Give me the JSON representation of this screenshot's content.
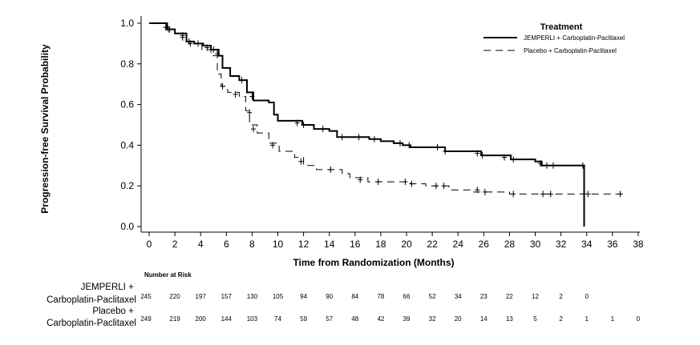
{
  "chart_data": {
    "type": "line",
    "subtype": "kaplan-meier",
    "xlabel": "Time from Randomization (Months)",
    "ylabel": "Progression-free Survival Probability",
    "xlim": [
      0,
      38
    ],
    "ylim": [
      0,
      1.0
    ],
    "x_ticks": [
      "0",
      "2",
      "4",
      "6",
      "8",
      "10",
      "12",
      "14",
      "16",
      "18",
      "20",
      "22",
      "24",
      "26",
      "28",
      "30",
      "32",
      "34",
      "36",
      "38"
    ],
    "y_ticks": [
      "0.0",
      "0.2",
      "0.4",
      "0.6",
      "0.8",
      "1.0"
    ],
    "legend_title": "Treatment",
    "legend_position": "top-right",
    "series": [
      {
        "name": "JEMPERLI + Carboplatin-Paclitaxel",
        "style": "solid",
        "steps": [
          [
            0,
            1.0
          ],
          [
            1.4,
            0.97
          ],
          [
            2.0,
            0.95
          ],
          [
            2.9,
            0.91
          ],
          [
            3.5,
            0.9
          ],
          [
            4.2,
            0.89
          ],
          [
            4.8,
            0.87
          ],
          [
            5.4,
            0.84
          ],
          [
            5.7,
            0.78
          ],
          [
            6.3,
            0.74
          ],
          [
            7.0,
            0.72
          ],
          [
            7.6,
            0.66
          ],
          [
            8.1,
            0.62
          ],
          [
            9.3,
            0.61
          ],
          [
            9.7,
            0.55
          ],
          [
            10.0,
            0.52
          ],
          [
            11.9,
            0.5
          ],
          [
            12.8,
            0.48
          ],
          [
            14.0,
            0.47
          ],
          [
            14.5,
            0.47
          ],
          [
            14.6,
            0.44
          ],
          [
            17.1,
            0.43
          ],
          [
            18.0,
            0.42
          ],
          [
            19.0,
            0.41
          ],
          [
            19.7,
            0.4
          ],
          [
            20.3,
            0.39
          ],
          [
            23.0,
            0.37
          ],
          [
            25.8,
            0.35
          ],
          [
            28.1,
            0.33
          ],
          [
            30.0,
            0.32
          ],
          [
            30.5,
            0.3
          ],
          [
            33.8,
            0.3
          ],
          [
            33.8,
            0.0
          ]
        ],
        "censors": [
          [
            1.3,
            0.98
          ],
          [
            1.5,
            0.97
          ],
          [
            2.6,
            0.94
          ],
          [
            3.1,
            0.91
          ],
          [
            3.8,
            0.9
          ],
          [
            4.5,
            0.88
          ],
          [
            5.0,
            0.87
          ],
          [
            5.3,
            0.85
          ],
          [
            7.2,
            0.72
          ],
          [
            8.0,
            0.64
          ],
          [
            11.5,
            0.51
          ],
          [
            12.0,
            0.5
          ],
          [
            13.5,
            0.48
          ],
          [
            15.0,
            0.44
          ],
          [
            16.3,
            0.44
          ],
          [
            17.5,
            0.43
          ],
          [
            19.5,
            0.41
          ],
          [
            20.2,
            0.4
          ],
          [
            22.4,
            0.39
          ],
          [
            23.0,
            0.37
          ],
          [
            25.5,
            0.36
          ],
          [
            25.9,
            0.35
          ],
          [
            27.6,
            0.34
          ],
          [
            28.3,
            0.33
          ],
          [
            30.4,
            0.31
          ],
          [
            30.9,
            0.3
          ],
          [
            31.4,
            0.3
          ],
          [
            33.7,
            0.3
          ]
        ],
        "at_risk_label": "JEMPERLI +\nCarboplatin-Paclitaxel",
        "at_risk": [
          "245",
          "220",
          "197",
          "157",
          "130",
          "105",
          "94",
          "90",
          "84",
          "78",
          "66",
          "52",
          "34",
          "23",
          "22",
          "12",
          "2",
          "0"
        ]
      },
      {
        "name": "Placebo + Carboplatin-Paclitaxel",
        "style": "dashed",
        "steps": [
          [
            0,
            1.0
          ],
          [
            1.4,
            0.97
          ],
          [
            2.0,
            0.95
          ],
          [
            2.9,
            0.91
          ],
          [
            3.5,
            0.9
          ],
          [
            4.1,
            0.87
          ],
          [
            4.8,
            0.84
          ],
          [
            5.3,
            0.75
          ],
          [
            5.6,
            0.69
          ],
          [
            6.1,
            0.66
          ],
          [
            7.0,
            0.64
          ],
          [
            7.5,
            0.57
          ],
          [
            7.8,
            0.5
          ],
          [
            8.4,
            0.46
          ],
          [
            9.3,
            0.41
          ],
          [
            10.1,
            0.37
          ],
          [
            11.3,
            0.34
          ],
          [
            12.0,
            0.3
          ],
          [
            13.0,
            0.28
          ],
          [
            15.0,
            0.26
          ],
          [
            15.6,
            0.24
          ],
          [
            17.0,
            0.22
          ],
          [
            20.3,
            0.21
          ],
          [
            21.5,
            0.2
          ],
          [
            23.3,
            0.18
          ],
          [
            25.1,
            0.17
          ],
          [
            27.0,
            0.17
          ],
          [
            28.0,
            0.16
          ],
          [
            36.8,
            0.16
          ]
        ],
        "censors": [
          [
            1.3,
            0.98
          ],
          [
            1.6,
            0.97
          ],
          [
            2.6,
            0.93
          ],
          [
            3.2,
            0.9
          ],
          [
            5.7,
            0.69
          ],
          [
            6.7,
            0.65
          ],
          [
            7.8,
            0.56
          ],
          [
            8.1,
            0.48
          ],
          [
            9.6,
            0.4
          ],
          [
            11.8,
            0.32
          ],
          [
            14.1,
            0.28
          ],
          [
            16.4,
            0.23
          ],
          [
            17.8,
            0.22
          ],
          [
            19.9,
            0.22
          ],
          [
            20.4,
            0.21
          ],
          [
            22.3,
            0.2
          ],
          [
            22.9,
            0.2
          ],
          [
            25.5,
            0.18
          ],
          [
            26.1,
            0.17
          ],
          [
            28.3,
            0.16
          ],
          [
            30.6,
            0.16
          ],
          [
            31.2,
            0.16
          ],
          [
            34.1,
            0.16
          ],
          [
            36.6,
            0.16
          ]
        ],
        "at_risk_label": "Placebo +\nCarboplatin-Paclitaxel",
        "at_risk": [
          "249",
          "219",
          "200",
          "144",
          "103",
          "74",
          "59",
          "57",
          "48",
          "42",
          "39",
          "32",
          "20",
          "14",
          "13",
          "5",
          "2",
          "1",
          "1",
          "0"
        ]
      }
    ],
    "number_at_risk_title": "Number at Risk"
  }
}
